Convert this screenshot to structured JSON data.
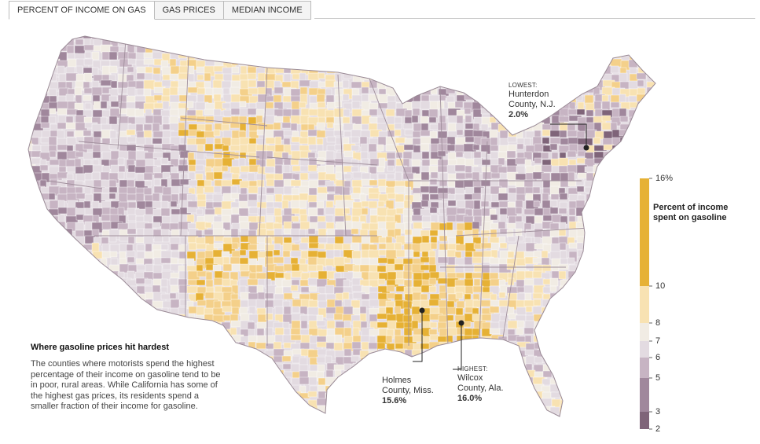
{
  "tabs": [
    {
      "label": "PERCENT OF INCOME ON GAS",
      "active": true
    },
    {
      "label": "GAS PRICES",
      "active": false
    },
    {
      "label": "MEDIAN INCOME",
      "active": false
    }
  ],
  "annotations": {
    "lowest": {
      "tag": "LOWEST:",
      "place_1": "Hunterdon",
      "place_2": "County, N.J.",
      "value": "2.0%"
    },
    "holmes": {
      "place_1": "Holmes",
      "place_2": "County, Miss.",
      "value": "15.6%"
    },
    "highest": {
      "tag": "HIGHEST:",
      "place_1": "Wilcox",
      "place_2": "County, Ala.",
      "value": "16.0%"
    }
  },
  "story": {
    "title": "Where gasoline prices hit hardest",
    "body": "The counties where motorists spend the highest percentage of their income on gasoline tend to be in poor, rural areas. While California has some of the highest gas prices, its residents spend a smaller fraction of their income for gasoline."
  },
  "legend": {
    "title_1": "Percent of income",
    "title_2": "spent on gasoline",
    "stops": [
      {
        "label": "16%",
        "value": 16,
        "color": "#e6b135"
      },
      {
        "label": "10",
        "value": 10,
        "color": "#f4d08a"
      },
      {
        "label": "8",
        "value": 8,
        "color": "#f8e2b2"
      },
      {
        "label": "7",
        "value": 7,
        "color": "#f1ece4"
      },
      {
        "label": "6",
        "value": 6,
        "color": "#e3dbe1"
      },
      {
        "label": "5",
        "value": 5,
        "color": "#c7b4c3"
      },
      {
        "label": "3",
        "value": 3,
        "color": "#a0879c"
      },
      {
        "label": "2",
        "value": 2,
        "color": "#7f6479"
      }
    ]
  },
  "colors": {
    "border": "#ffffff",
    "state_line": "#a08f9c",
    "marker": "#222222"
  }
}
